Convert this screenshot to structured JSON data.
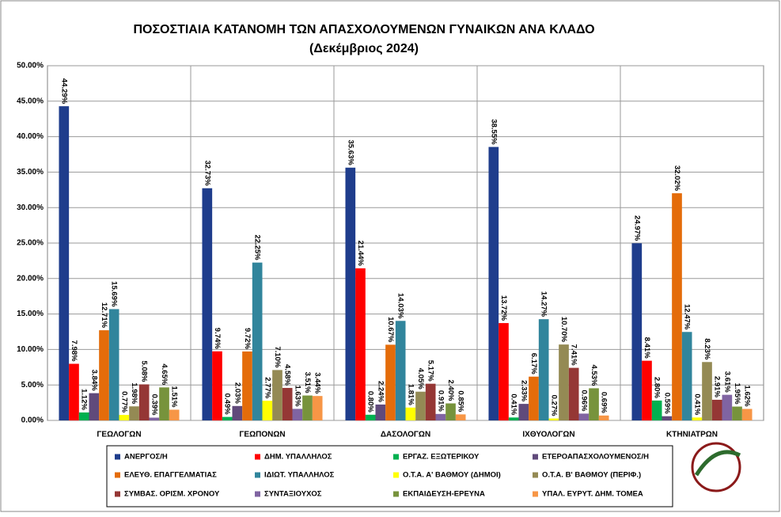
{
  "chart_data": {
    "type": "bar",
    "title": "ΠΟΣΟΣΤΙΑΙΑ ΚΑΤΑΝΟΜΗ ΤΩΝ ΑΠΑΣΧΟΛΟΥΜΕΝΩΝ ΓΥΝΑΙΚΩΝ ΑΝΑ ΚΛΑΔΟ",
    "subtitle": "(Δεκέμβριος 2024)",
    "categories": [
      "ΓΕΩΛΟΓΩΝ",
      "ΓΕΩΠΟΝΩΝ",
      "ΔΑΣΟΛΟΓΩΝ",
      "ΙΧΘΥΟΛΟΓΩΝ",
      "ΚΤΗΝΙΑΤΡΩΝ"
    ],
    "series": [
      {
        "name": "ΑΝΕΡΓΟΣ/Η",
        "color": "#1f3d8c",
        "values": [
          44.29,
          32.73,
          35.63,
          38.55,
          24.97
        ],
        "value_labels": [
          "44.29%",
          "32.73%",
          "35.63%",
          "38.55%",
          "24.97%"
        ]
      },
      {
        "name": "ΔΗΜ. ΥΠΑΛΛΗΛΟΣ",
        "color": "#ff0000",
        "values": [
          7.98,
          9.74,
          21.44,
          13.72,
          8.41
        ],
        "value_labels": [
          "7.98%",
          "9.74%",
          "21.44%",
          "13.72%",
          "8.41%"
        ]
      },
      {
        "name": "ΕΡΓΑΖ. ΕΞΩΤΕΡΙΚΟΥ",
        "color": "#00b050",
        "values": [
          1.12,
          0.49,
          0.8,
          0.41,
          2.8
        ],
        "value_labels": [
          "1.12%",
          "0.49%",
          "0.80%",
          "0.41%",
          "2.80%"
        ]
      },
      {
        "name": "ΕΤΕΡΟΑΠΑΣΧΟΛΟΥΜΕΝΟΣ/Η",
        "color": "#604a7b",
        "values": [
          3.84,
          2.03,
          2.24,
          2.33,
          0.59
        ],
        "value_labels": [
          "3.84%",
          "2.03%",
          "2.24%",
          "2.33%",
          "0.59%"
        ]
      },
      {
        "name": "ΕΛΕΥΘ. ΕΠΑΓΓΕΛΜΑΤΙΑΣ",
        "color": "#e46c0a",
        "values": [
          12.71,
          9.72,
          10.67,
          6.17,
          32.02
        ],
        "value_labels": [
          "12.71%",
          "9.72%",
          "10.67%",
          "6.17%",
          "32.02%"
        ]
      },
      {
        "name": "ΙΔΙΩΤ. ΥΠΑΛΛΗΛΟΣ",
        "color": "#31859c",
        "values": [
          15.69,
          22.25,
          14.03,
          14.27,
          12.47
        ],
        "value_labels": [
          "15.69%",
          "22.25%",
          "14.03%",
          "14.27%",
          "12.47%"
        ]
      },
      {
        "name": "Ο.Τ.Α. Α' ΒΑΘΜΟΥ (ΔΗΜΟΙ)",
        "color": "#ffff00",
        "values": [
          0.77,
          2.77,
          1.81,
          0.27,
          0.41
        ],
        "value_labels": [
          "0.77%",
          "2.77%",
          "1.81%",
          "0.27%",
          "0.41%"
        ]
      },
      {
        "name": "Ο.Τ.Α. Β' ΒΑΘΜΟΥ (ΠΕΡΙΦ.)",
        "color": "#948a54",
        "values": [
          1.98,
          7.1,
          4.05,
          10.7,
          8.23
        ],
        "value_labels": [
          "1.98%",
          "7.10%",
          "4.05%",
          "10.70%",
          "8.23%"
        ]
      },
      {
        "name": "ΣΥΜΒΑΣ. ΟΡΙΣΜ. ΧΡΟΝΟΥ",
        "color": "#953735",
        "values": [
          5.08,
          4.58,
          5.17,
          7.41,
          2.91
        ],
        "value_labels": [
          "5.08%",
          "4.58%",
          "5.17%",
          "7.41%",
          "2.91%"
        ]
      },
      {
        "name": "ΣΥΝΤΑΞΙΟΥΧΟΣ",
        "color": "#8064a2",
        "values": [
          0.39,
          1.63,
          0.91,
          0.96,
          3.61
        ],
        "value_labels": [
          "0.39%",
          "1.63%",
          "0.91%",
          "0.96%",
          "3.61%"
        ]
      },
      {
        "name": "ΕΚΠΑΙΔΕΥΣΗ-ΕΡΕΥΝΑ",
        "color": "#77933c",
        "values": [
          4.65,
          3.51,
          2.4,
          4.53,
          1.95
        ],
        "value_labels": [
          "4.65%",
          "3.51%",
          "2.40%",
          "4.53%",
          "1.95%"
        ]
      },
      {
        "name": "ΥΠΑΛ. ΕΥΡΥΤ. ΔΗΜ. ΤΟΜΕΑ",
        "color": "#f79646",
        "values": [
          1.51,
          3.44,
          0.85,
          0.69,
          1.62
        ],
        "value_labels": [
          "1.51%",
          "3.44%",
          "0.85%",
          "0.69%",
          "1.62%"
        ]
      }
    ],
    "ylim": [
      0,
      50
    ],
    "yticks": [
      {
        "value": 0,
        "label": "0.00%"
      },
      {
        "value": 5,
        "label": "5.00%"
      },
      {
        "value": 10,
        "label": "10.00%"
      },
      {
        "value": 15,
        "label": "15.00%"
      },
      {
        "value": 20,
        "label": "20.00%"
      },
      {
        "value": 25,
        "label": "25.00%"
      },
      {
        "value": 30,
        "label": "30.00%"
      },
      {
        "value": 35,
        "label": "35.00%"
      },
      {
        "value": 40,
        "label": "40.00%"
      },
      {
        "value": 45,
        "label": "45.00%"
      },
      {
        "value": 50,
        "label": "50.00%"
      }
    ],
    "grid": true
  }
}
